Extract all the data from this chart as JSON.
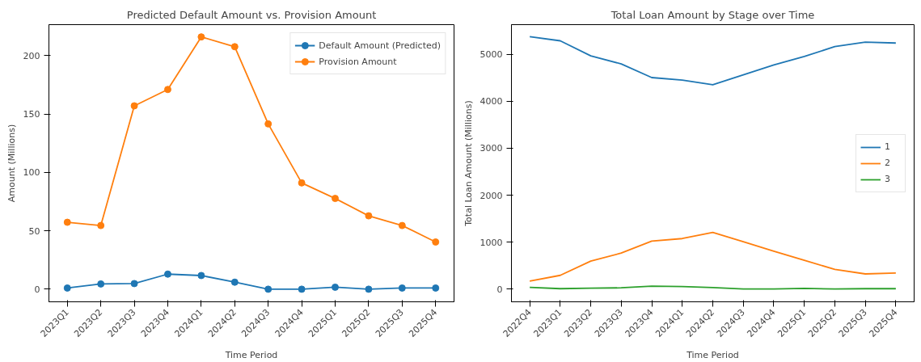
{
  "chart_data": [
    {
      "type": "line",
      "title": "Predicted Default Amount vs. Provision Amount",
      "xlabel": "Time Period",
      "ylabel": "Amount (Millions)",
      "categories": [
        "2023Q1",
        "2023Q2",
        "2023Q3",
        "2023Q4",
        "2024Q1",
        "2024Q2",
        "2024Q3",
        "2024Q4",
        "2025Q1",
        "2025Q2",
        "2025Q3",
        "2025Q4"
      ],
      "series": [
        {
          "name": "Default Amount (Predicted)",
          "color": "#1f77b4",
          "values": [
            1,
            4.5,
            4.8,
            12.9,
            11.7,
            6,
            0,
            0,
            1.7,
            0,
            1,
            1
          ]
        },
        {
          "name": "Provision Amount",
          "color": "#ff7f0e",
          "values": [
            57.3,
            54.5,
            157,
            171,
            216,
            207.6,
            141.5,
            91,
            77.7,
            62.8,
            54.5,
            40.4
          ]
        }
      ],
      "ylim": [
        -10.8,
        226.5
      ],
      "yticks": [
        0,
        50,
        100,
        150,
        200
      ],
      "grid": false,
      "legend": "top right",
      "marker": "circle",
      "line_style": "solid"
    },
    {
      "type": "line",
      "title": "Total Loan Amount by Stage over Time",
      "xlabel": "Time Period",
      "ylabel": "Total Loan Amount (Millions)",
      "categories": [
        "2022Q4",
        "2023Q1",
        "2023Q2",
        "2023Q3",
        "2023Q4",
        "2024Q1",
        "2024Q2",
        "2024Q3",
        "2024Q4",
        "2025Q1",
        "2025Q2",
        "2025Q3",
        "2025Q4"
      ],
      "series": [
        {
          "name": "1",
          "color": "#1f77b4",
          "values": [
            5373,
            5284,
            4964,
            4793,
            4502,
            4449,
            4348,
            4562,
            4769,
            4953,
            5160,
            5255,
            5237
          ]
        },
        {
          "name": "2",
          "color": "#ff7f0e",
          "values": [
            172,
            296,
            598,
            770,
            1025,
            1078,
            1208,
            1013,
            811,
            616,
            421,
            326,
            344
          ]
        },
        {
          "name": "3",
          "color": "#2ca02c",
          "values": [
            41,
            12,
            24,
            30,
            65,
            59,
            36,
            6,
            6,
            18,
            6,
            12,
            12
          ]
        }
      ],
      "ylim": [
        -267,
        5628
      ],
      "yticks": [
        0,
        1000,
        2000,
        3000,
        4000,
        5000
      ],
      "grid": false,
      "legend": "right",
      "marker": "none",
      "line_style": "solid"
    }
  ]
}
